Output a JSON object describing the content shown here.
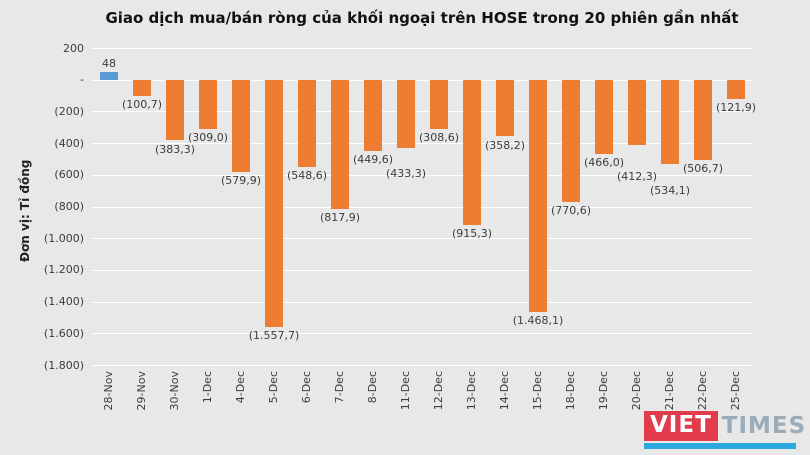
{
  "page": {
    "background": "#e9e8e8"
  },
  "chart_data": {
    "type": "bar",
    "title": "Giao dịch mua/bán ròng của khối ngoại trên HOSE trong 20 phiên gần nhất",
    "ylabel": "Đơn vị: Tỉ đồng",
    "categories": [
      "28-Nov",
      "29-Nov",
      "30-Nov",
      "1-Dec",
      "4-Dec",
      "5-Dec",
      "6-Dec",
      "7-Dec",
      "8-Dec",
      "11-Dec",
      "12-Dec",
      "13-Dec",
      "14-Dec",
      "15-Dec",
      "18-Dec",
      "19-Dec",
      "20-Dec",
      "21-Dec",
      "22-Dec",
      "25-Dec"
    ],
    "values": [
      48,
      -100.7,
      -383.3,
      -309.0,
      -579.9,
      -1557.7,
      -548.6,
      -817.9,
      -449.6,
      -433.3,
      -308.6,
      -915.3,
      -358.2,
      -1468.1,
      -770.6,
      -466.0,
      -412.3,
      -534.1,
      -506.7,
      -121.9
    ],
    "data_labels": [
      "48",
      "(100,7)",
      "(383,3)",
      "(309,0)",
      "(579,9)",
      "(1.557,7)",
      "(548,6)",
      "(817,9)",
      "(449,6)",
      "(433,3)",
      "(308,6)",
      "(915,3)",
      "(358,2)",
      "(1.468,1)",
      "(770,6)",
      "(466,0)",
      "(412,3)",
      "(534,1)",
      "(506,7)",
      "(121,9)"
    ],
    "ylim": [
      -1800,
      200
    ],
    "ytick_step": 200,
    "ytick_labels": [
      "200",
      "-",
      "(200)",
      "(400)",
      "(600)",
      "(800)",
      "(1.000)",
      "(1.200)",
      "(1.400)",
      "(1.600)",
      "(1.800)"
    ],
    "grid": true,
    "legend": "none",
    "colors": {
      "positive": "#5b9bd5",
      "negative": "#ed7d31",
      "gridline": "#ffffff"
    }
  },
  "logo": {
    "part1": "VIET",
    "part2": "TIMES"
  }
}
